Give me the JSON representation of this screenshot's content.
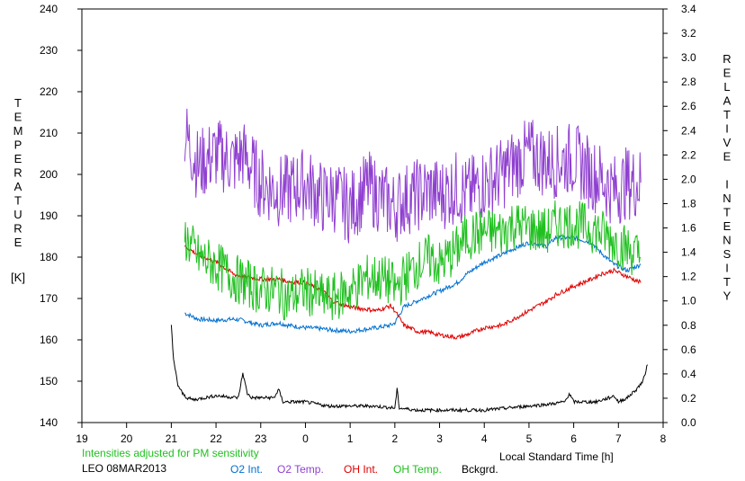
{
  "chart_data": {
    "type": "line",
    "title": "",
    "station_date": "LEO 08MAR2013",
    "note": "Intensities adjusted for PM sensitivity",
    "xlabel": "Local Standard Time [h]",
    "ylabel_left_letters": [
      "T",
      "E",
      "M",
      "P",
      "E",
      "R",
      "A",
      "T",
      "U",
      "R",
      "E"
    ],
    "ylabel_left_unit": "[K]",
    "ylabel_right_letters": [
      "R",
      "E",
      "L",
      "A",
      "T",
      "I",
      "V",
      "E",
      "",
      "I",
      "N",
      "T",
      "E",
      "N",
      "S",
      "I",
      "T",
      "Y"
    ],
    "x_ticks": [
      "19",
      "20",
      "21",
      "22",
      "23",
      "0",
      "1",
      "2",
      "3",
      "4",
      "5",
      "6",
      "7",
      "8"
    ],
    "x_range_hours": [
      19,
      32
    ],
    "y_left_ticks": [
      "140",
      "150",
      "160",
      "170",
      "180",
      "190",
      "200",
      "210",
      "220",
      "230",
      "240"
    ],
    "y_left_range": [
      140,
      240
    ],
    "y_right_ticks": [
      "0.0",
      "0.2",
      "0.4",
      "0.6",
      "0.8",
      "1.0",
      "1.2",
      "1.4",
      "1.6",
      "1.8",
      "2.0",
      "2.2",
      "2.4",
      "2.6",
      "2.8",
      "3.0",
      "3.2",
      "3.4"
    ],
    "y_right_range": [
      0.0,
      3.4
    ],
    "legend_position": "bottom",
    "series": [
      {
        "name": "O2 Int.",
        "color": "#0070d0",
        "axis": "right",
        "x": [
          21.3,
          21.6,
          22.0,
          22.4,
          22.6,
          23.0,
          23.4,
          23.6,
          24.0,
          24.4,
          24.6,
          25.0,
          25.4,
          25.6,
          25.9,
          26.0,
          26.2,
          26.5,
          26.8,
          27.0,
          27.4,
          27.6,
          28.0,
          28.4,
          28.6,
          29.0,
          29.4,
          29.6,
          30.0,
          30.4,
          30.6,
          30.9,
          31.2,
          31.5
        ],
        "y": [
          0.9,
          0.85,
          0.84,
          0.85,
          0.84,
          0.8,
          0.82,
          0.8,
          0.78,
          0.77,
          0.76,
          0.75,
          0.77,
          0.78,
          0.8,
          0.82,
          0.95,
          1.0,
          1.05,
          1.08,
          1.15,
          1.22,
          1.32,
          1.38,
          1.42,
          1.48,
          1.45,
          1.52,
          1.52,
          1.48,
          1.4,
          1.3,
          1.25,
          1.3
        ]
      },
      {
        "name": "O2 Temp.",
        "color": "#9040d0",
        "axis": "left",
        "x": [
          21.3,
          21.6,
          22.0,
          22.4,
          22.6,
          23.0,
          23.4,
          23.6,
          24.0,
          24.4,
          24.6,
          25.0,
          25.4,
          25.6,
          25.9,
          26.0,
          26.2,
          26.5,
          26.8,
          27.0,
          27.4,
          27.6,
          28.0,
          28.4,
          28.6,
          29.0,
          29.4,
          29.6,
          30.0,
          30.4,
          30.6,
          30.9,
          31.2,
          31.5
        ],
        "y": [
          210,
          202,
          205,
          203,
          205,
          198,
          196,
          196,
          198,
          194,
          195,
          192,
          197,
          195,
          193,
          192,
          194,
          195,
          196,
          195,
          197,
          195,
          198,
          200,
          202,
          205,
          203,
          203,
          204,
          200,
          199,
          196,
          198,
          198
        ]
      },
      {
        "name": "OH Int.",
        "color": "#e00000",
        "axis": "right",
        "x": [
          21.3,
          21.6,
          22.0,
          22.4,
          22.6,
          23.0,
          23.4,
          23.6,
          24.0,
          24.4,
          24.6,
          25.0,
          25.4,
          25.6,
          25.9,
          26.0,
          26.2,
          26.5,
          26.8,
          27.0,
          27.4,
          27.6,
          28.0,
          28.4,
          28.6,
          29.0,
          29.4,
          29.6,
          30.0,
          30.4,
          30.6,
          30.9,
          31.2,
          31.5
        ],
        "y": [
          1.45,
          1.38,
          1.32,
          1.22,
          1.2,
          1.18,
          1.18,
          1.16,
          1.15,
          1.08,
          1.0,
          0.95,
          0.93,
          0.92,
          0.96,
          0.92,
          0.8,
          0.75,
          0.74,
          0.72,
          0.7,
          0.72,
          0.78,
          0.8,
          0.84,
          0.92,
          1.0,
          1.05,
          1.12,
          1.18,
          1.22,
          1.25,
          1.2,
          1.15
        ]
      },
      {
        "name": "OH Temp.",
        "color": "#20c020",
        "axis": "left",
        "x": [
          21.3,
          21.6,
          22.0,
          22.4,
          22.6,
          23.0,
          23.4,
          23.6,
          24.0,
          24.4,
          24.6,
          25.0,
          25.4,
          25.6,
          25.9,
          26.0,
          26.2,
          26.5,
          26.8,
          27.0,
          27.4,
          27.6,
          28.0,
          28.4,
          28.6,
          29.0,
          29.4,
          29.6,
          30.0,
          30.4,
          30.6,
          30.9,
          31.2,
          31.5
        ],
        "y": [
          185,
          180,
          178,
          175,
          174,
          172,
          172,
          170,
          172,
          170,
          170,
          172,
          175,
          175,
          174,
          172,
          175,
          178,
          180,
          178,
          182,
          185,
          186,
          186,
          188,
          187,
          186,
          188,
          188,
          187,
          186,
          184,
          182,
          180
        ]
      },
      {
        "name": "Bckgrd.",
        "color": "#000000",
        "axis": "left",
        "x": [
          21.0,
          21.05,
          21.15,
          21.25,
          21.35,
          21.5,
          22.0,
          22.5,
          22.6,
          22.7,
          22.8,
          23.0,
          23.3,
          23.4,
          23.5,
          24.0,
          24.5,
          25.0,
          25.5,
          26.0,
          26.05,
          26.1,
          26.5,
          27.0,
          27.5,
          28.0,
          28.5,
          29.0,
          29.5,
          29.8,
          29.9,
          30.0,
          30.5,
          30.8,
          30.9,
          31.0,
          31.2,
          31.4,
          31.55,
          31.65
        ],
        "y": [
          164,
          155,
          149,
          147,
          146,
          145.5,
          146.5,
          146,
          152,
          147,
          146,
          146,
          146,
          148,
          145,
          145,
          144,
          144,
          144,
          143.5,
          148,
          143.5,
          143,
          143,
          143,
          143,
          143.5,
          144,
          144.5,
          145,
          147,
          145,
          145,
          146,
          146.5,
          145,
          146,
          148,
          150,
          154
        ]
      }
    ]
  }
}
